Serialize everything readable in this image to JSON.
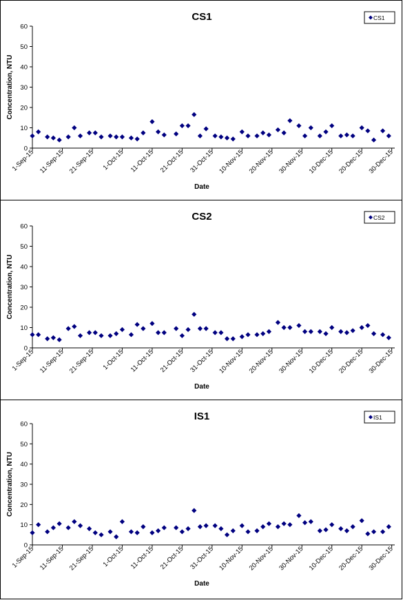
{
  "styles": {
    "marker_color": "#000080",
    "axis_color": "#000000",
    "background": "#ffffff"
  },
  "chart_data": [
    {
      "type": "scatter",
      "title": "CS1",
      "xlabel": "Date",
      "ylabel": "Concentration, NTU",
      "ylim": [
        0,
        60
      ],
      "yticks": [
        "0",
        "10",
        "20",
        "30",
        "40",
        "50",
        "60"
      ],
      "xlim": [
        "2015-09-01",
        "2015-12-31"
      ],
      "xticks": [
        "1-Sep-15",
        "11-Sep-15",
        "21-Sep-15",
        "1-Oct-15",
        "11-Oct-15",
        "21-Oct-15",
        "31-Oct-15",
        "10-Nov-15",
        "20-Nov-15",
        "30-Nov-15",
        "10-Dec-15",
        "20-Dec-15",
        "30-Dec-15"
      ],
      "grid": false,
      "legend": "top-right",
      "series": [
        {
          "name": "CS1",
          "x": [
            "2015-09-01",
            "2015-09-03",
            "2015-09-06",
            "2015-09-08",
            "2015-09-10",
            "2015-09-13",
            "2015-09-15",
            "2015-09-17",
            "2015-09-20",
            "2015-09-22",
            "2015-09-24",
            "2015-09-27",
            "2015-09-29",
            "2015-10-01",
            "2015-10-04",
            "2015-10-06",
            "2015-10-08",
            "2015-10-11",
            "2015-10-13",
            "2015-10-15",
            "2015-10-19",
            "2015-10-21",
            "2015-10-23",
            "2015-10-25",
            "2015-10-27",
            "2015-10-29",
            "2015-11-01",
            "2015-11-03",
            "2015-11-05",
            "2015-11-07",
            "2015-11-10",
            "2015-11-12",
            "2015-11-15",
            "2015-11-17",
            "2015-11-19",
            "2015-11-22",
            "2015-11-24",
            "2015-11-26",
            "2015-11-29",
            "2015-12-01",
            "2015-12-03",
            "2015-12-06",
            "2015-12-08",
            "2015-12-10",
            "2015-12-13",
            "2015-12-15",
            "2015-12-17",
            "2015-12-20",
            "2015-12-22",
            "2015-12-24",
            "2015-12-27",
            "2015-12-29"
          ],
          "y": [
            6,
            8,
            5.5,
            5,
            4,
            5.5,
            10,
            6,
            7.5,
            7.5,
            5.5,
            6,
            5.5,
            5.5,
            5,
            4.5,
            7.5,
            13,
            8,
            6.5,
            7,
            11,
            11,
            16.5,
            6,
            9.5,
            6,
            5.5,
            5,
            4.5,
            8,
            6,
            6,
            7.5,
            6.5,
            9,
            7.5,
            13.5,
            11,
            6,
            10,
            6,
            8,
            11,
            6,
            6.5,
            6,
            10,
            8.5,
            4,
            8.5,
            6
          ]
        }
      ]
    },
    {
      "type": "scatter",
      "title": "CS2",
      "xlabel": "Date",
      "ylabel": "Concentration, NTU",
      "ylim": [
        0,
        60
      ],
      "yticks": [
        "0",
        "10",
        "20",
        "30",
        "40",
        "50",
        "60"
      ],
      "xlim": [
        "2015-09-01",
        "2015-12-31"
      ],
      "xticks": [
        "1-Sep-15",
        "11-Sep-15",
        "21-Sep-15",
        "1-Oct-15",
        "11-Oct-15",
        "21-Oct-15",
        "31-Oct-15",
        "10-Nov-15",
        "20-Nov-15",
        "30-Nov-15",
        "10-Dec-15",
        "20-Dec-15",
        "30-Dec-15"
      ],
      "grid": false,
      "legend": "top-right",
      "series": [
        {
          "name": "CS2",
          "x": [
            "2015-09-01",
            "2015-09-03",
            "2015-09-06",
            "2015-09-08",
            "2015-09-10",
            "2015-09-13",
            "2015-09-15",
            "2015-09-17",
            "2015-09-20",
            "2015-09-22",
            "2015-09-24",
            "2015-09-27",
            "2015-09-29",
            "2015-10-01",
            "2015-10-04",
            "2015-10-06",
            "2015-10-08",
            "2015-10-11",
            "2015-10-13",
            "2015-10-15",
            "2015-10-19",
            "2015-10-21",
            "2015-10-23",
            "2015-10-25",
            "2015-10-27",
            "2015-10-29",
            "2015-11-01",
            "2015-11-03",
            "2015-11-05",
            "2015-11-07",
            "2015-11-10",
            "2015-11-12",
            "2015-11-15",
            "2015-11-17",
            "2015-11-19",
            "2015-11-22",
            "2015-11-24",
            "2015-11-26",
            "2015-11-29",
            "2015-12-01",
            "2015-12-03",
            "2015-12-06",
            "2015-12-08",
            "2015-12-10",
            "2015-12-13",
            "2015-12-15",
            "2015-12-17",
            "2015-12-20",
            "2015-12-22",
            "2015-12-24",
            "2015-12-27",
            "2015-12-29"
          ],
          "y": [
            6.5,
            6.5,
            4.5,
            5,
            4,
            9.5,
            10.5,
            6,
            7.5,
            7.5,
            6,
            6,
            7,
            9,
            6.5,
            11.5,
            9.5,
            12,
            7.5,
            7.5,
            9.5,
            6,
            9,
            16.5,
            9.5,
            9.5,
            7.5,
            7.5,
            4.5,
            4.5,
            5.5,
            6.5,
            6.5,
            7,
            8,
            12.5,
            10,
            10,
            11,
            8,
            8,
            8,
            7,
            10,
            8,
            7.5,
            8.5,
            10,
            11,
            7,
            6.5,
            5
          ]
        }
      ]
    },
    {
      "type": "scatter",
      "title": "IS1",
      "xlabel": "Date",
      "ylabel": "Concentration, NTU",
      "ylim": [
        0,
        60
      ],
      "yticks": [
        "0",
        "10",
        "20",
        "30",
        "40",
        "50",
        "60"
      ],
      "xlim": [
        "2015-09-01",
        "2015-12-31"
      ],
      "xticks": [
        "1-Sep-15",
        "11-Sep-15",
        "21-Sep-15",
        "1-Oct-15",
        "11-Oct-15",
        "21-Oct-15",
        "31-Oct-15",
        "10-Nov-15",
        "20-Nov-15",
        "30-Nov-15",
        "10-Dec-15",
        "20-Dec-15",
        "30-Dec-15"
      ],
      "grid": false,
      "legend": "top-right",
      "series": [
        {
          "name": "IS1",
          "x": [
            "2015-09-01",
            "2015-09-03",
            "2015-09-06",
            "2015-09-08",
            "2015-09-10",
            "2015-09-13",
            "2015-09-15",
            "2015-09-17",
            "2015-09-20",
            "2015-09-22",
            "2015-09-24",
            "2015-09-27",
            "2015-09-29",
            "2015-10-01",
            "2015-10-04",
            "2015-10-06",
            "2015-10-08",
            "2015-10-11",
            "2015-10-13",
            "2015-10-15",
            "2015-10-19",
            "2015-10-21",
            "2015-10-23",
            "2015-10-25",
            "2015-10-27",
            "2015-10-29",
            "2015-11-01",
            "2015-11-03",
            "2015-11-05",
            "2015-11-07",
            "2015-11-10",
            "2015-11-12",
            "2015-11-15",
            "2015-11-17",
            "2015-11-19",
            "2015-11-22",
            "2015-11-24",
            "2015-11-26",
            "2015-11-29",
            "2015-12-01",
            "2015-12-03",
            "2015-12-06",
            "2015-12-08",
            "2015-12-10",
            "2015-12-13",
            "2015-12-15",
            "2015-12-17",
            "2015-12-20",
            "2015-12-22",
            "2015-12-24",
            "2015-12-27",
            "2015-12-29"
          ],
          "y": [
            6,
            10,
            6.5,
            8.5,
            10.5,
            8.5,
            11.5,
            9.5,
            8,
            6,
            5,
            6.5,
            4,
            11.5,
            6.5,
            6,
            9,
            6,
            7,
            8.5,
            8.5,
            6.5,
            8,
            17,
            9,
            9.5,
            9.5,
            8,
            5,
            7,
            9.5,
            6.5,
            7,
            9,
            10.5,
            9,
            10.5,
            10,
            14.5,
            11,
            11.5,
            7,
            7.5,
            10,
            8,
            7,
            9,
            12,
            5.5,
            6.5,
            6.5,
            9
          ]
        }
      ]
    }
  ]
}
